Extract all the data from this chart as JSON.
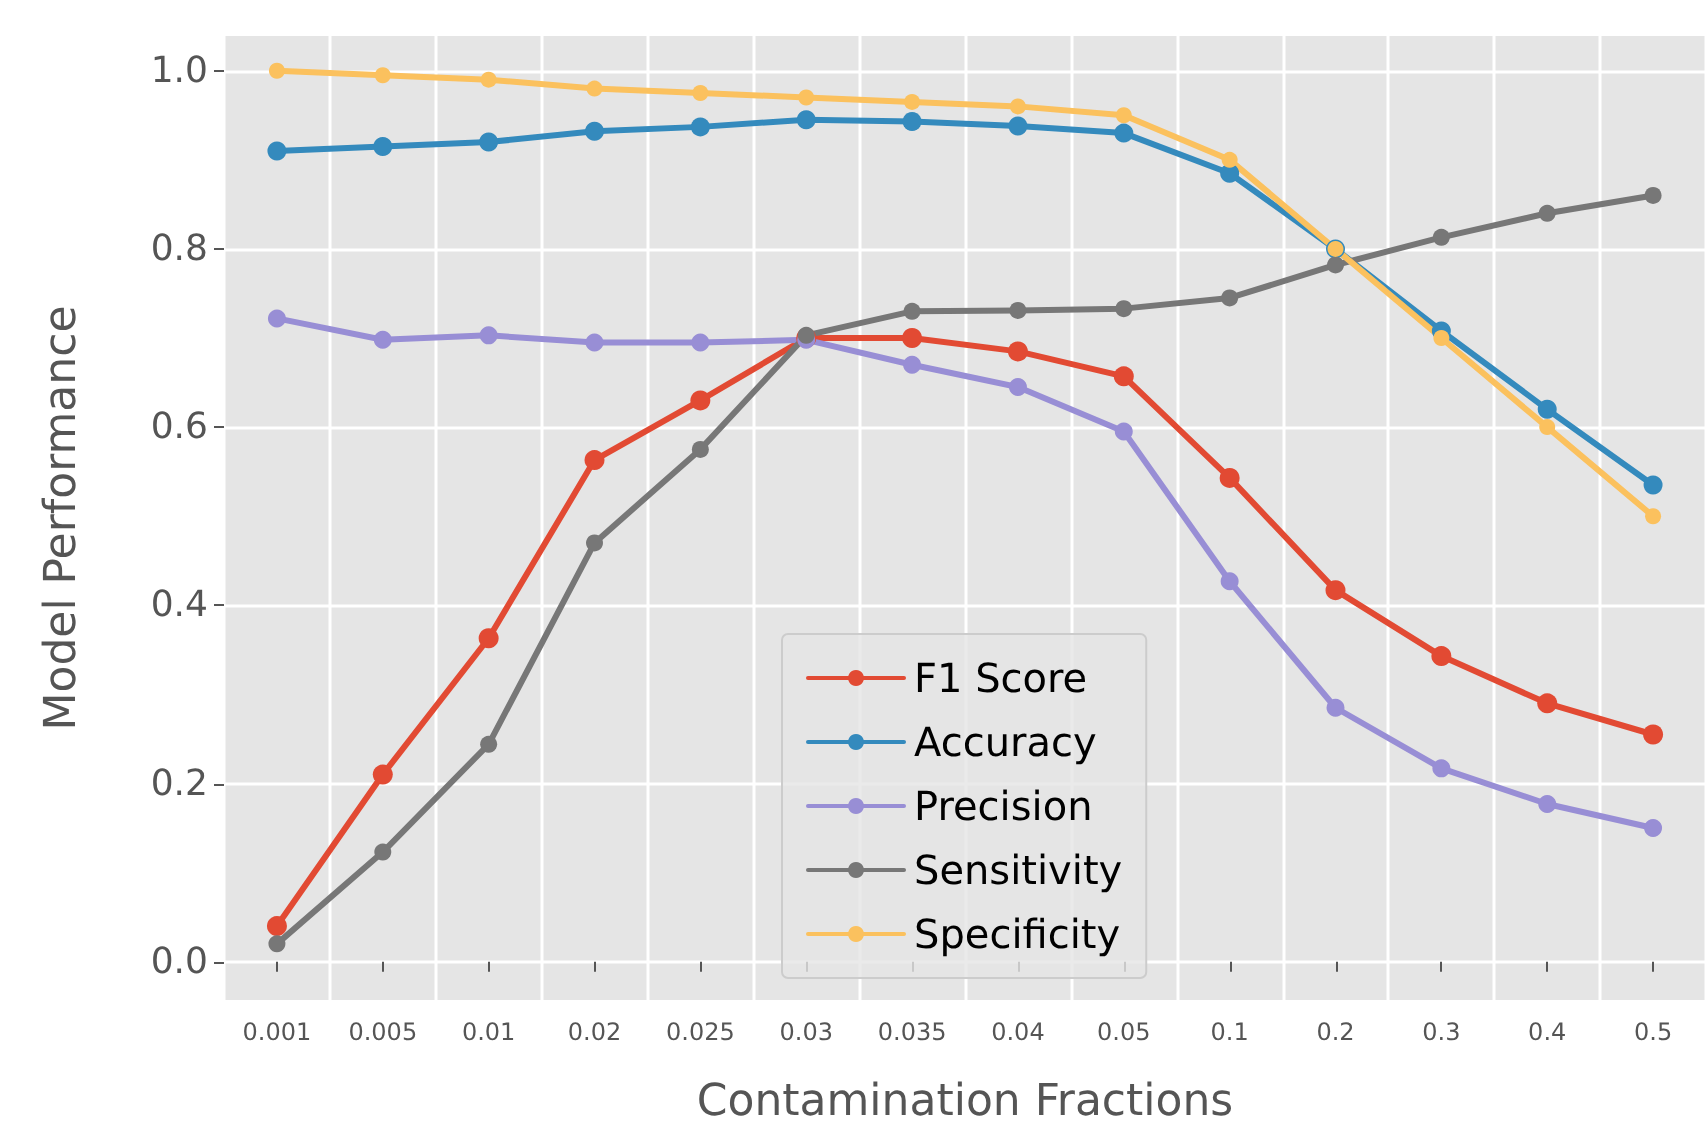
{
  "chart_data": {
    "type": "line",
    "xlabel": "Contamination Fractions",
    "ylabel": "Model Performance",
    "categories": [
      "0.001",
      "0.005",
      "0.01",
      "0.02",
      "0.025",
      "0.03",
      "0.035",
      "0.04",
      "0.05",
      "0.1",
      "0.2",
      "0.3",
      "0.4",
      "0.5"
    ],
    "series": [
      {
        "name": "F1 Score",
        "color": "#e24a33",
        "values": [
          0.04,
          0.21,
          0.363,
          0.563,
          0.63,
          0.7,
          0.7,
          0.685,
          0.657,
          0.543,
          0.417,
          0.343,
          0.29,
          0.255
        ]
      },
      {
        "name": "Accuracy",
        "color": "#348abd",
        "values": [
          0.91,
          0.915,
          0.92,
          0.932,
          0.937,
          0.945,
          0.943,
          0.938,
          0.93,
          0.885,
          0.8,
          0.708,
          0.62,
          0.535
        ]
      },
      {
        "name": "Precision",
        "color": "#988ed5",
        "values": [
          0.722,
          0.698,
          0.703,
          0.695,
          0.695,
          0.698,
          0.67,
          0.645,
          0.595,
          0.427,
          0.285,
          0.217,
          0.177,
          0.15
        ]
      },
      {
        "name": "Sensitivity",
        "color": "#777777",
        "values": [
          0.02,
          0.123,
          0.244,
          0.47,
          0.575,
          0.703,
          0.73,
          0.731,
          0.733,
          0.745,
          0.782,
          0.813,
          0.84,
          0.86
        ]
      },
      {
        "name": "Specificity",
        "color": "#fbc15e",
        "values": [
          1.0,
          0.995,
          0.99,
          0.98,
          0.975,
          0.97,
          0.965,
          0.96,
          0.95,
          0.9,
          0.8,
          0.7,
          0.6,
          0.5
        ]
      }
    ],
    "ylim": [
      -0.043,
      1.039
    ],
    "yticks": [
      {
        "value": 0,
        "label": "0.0"
      },
      {
        "value": 0.2,
        "label": "0.2"
      },
      {
        "value": 0.4,
        "label": "0.4"
      },
      {
        "value": 0.6,
        "label": "0.6"
      },
      {
        "value": 0.8,
        "label": "0.8"
      },
      {
        "value": 1,
        "label": "1.0"
      }
    ],
    "grid": true,
    "legend": "bottom",
    "marker": "circle",
    "line_style": "solid"
  }
}
